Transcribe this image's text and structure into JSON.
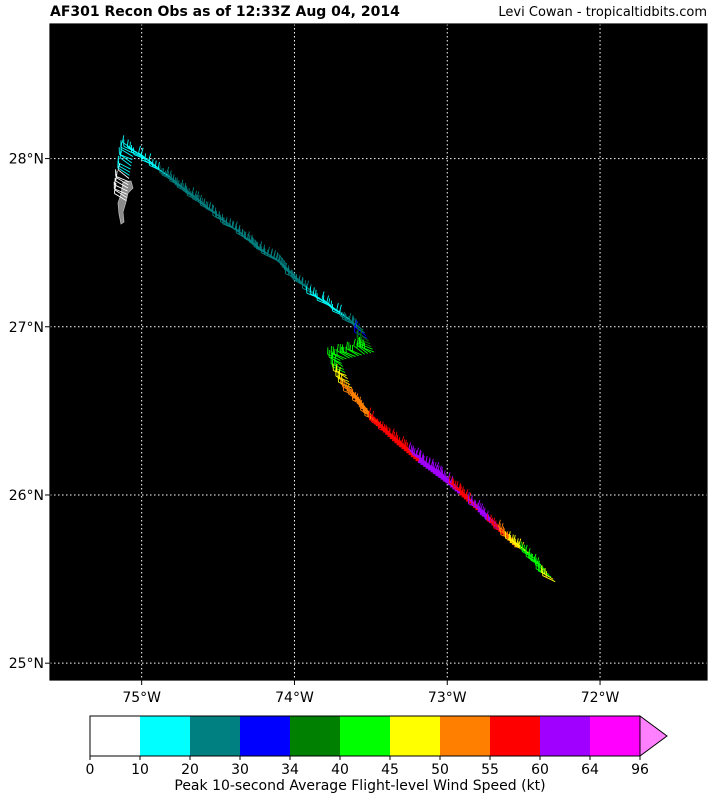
{
  "header": {
    "title": "AF301 Recon Obs as of 12:33Z Aug 04, 2014",
    "credit": "Levi Cowan - tropicaltidbits.com"
  },
  "map": {
    "lon_range": [
      -75.6,
      -71.3
    ],
    "lat_range": [
      24.9,
      28.8
    ],
    "lon_ticks": [
      {
        "value": -75,
        "label": "75°W"
      },
      {
        "value": -74,
        "label": "74°W"
      },
      {
        "value": -73,
        "label": "73°W"
      },
      {
        "value": -72,
        "label": "72°W"
      }
    ],
    "lat_ticks": [
      {
        "value": 28,
        "label": "28°N"
      },
      {
        "value": 27,
        "label": "27°N"
      },
      {
        "value": 26,
        "label": "26°N"
      },
      {
        "value": 25,
        "label": "25°N"
      }
    ],
    "background": "#000000",
    "grid": "dotted white",
    "land_color": "#8a8a8a",
    "flight_track": [
      {
        "lon": -75.1,
        "lat": 27.75,
        "wind": 8
      },
      {
        "lon": -75.08,
        "lat": 27.9,
        "wind": 10
      },
      {
        "lon": -75.05,
        "lat": 28.05,
        "wind": 15
      },
      {
        "lon": -74.8,
        "lat": 27.88,
        "wind": 20
      },
      {
        "lon": -74.55,
        "lat": 27.7,
        "wind": 22
      },
      {
        "lon": -74.3,
        "lat": 27.52,
        "wind": 23
      },
      {
        "lon": -74.05,
        "lat": 27.35,
        "wind": 22
      },
      {
        "lon": -73.85,
        "lat": 27.18,
        "wind": 20
      },
      {
        "lon": -73.65,
        "lat": 27.05,
        "wind": 18
      },
      {
        "lon": -73.55,
        "lat": 26.98,
        "wind": 28
      },
      {
        "lon": -73.48,
        "lat": 26.85,
        "wind": 42
      },
      {
        "lon": -73.7,
        "lat": 26.8,
        "wind": 41
      },
      {
        "lon": -73.62,
        "lat": 26.62,
        "wind": 50
      },
      {
        "lon": -73.5,
        "lat": 26.48,
        "wind": 54
      },
      {
        "lon": -73.35,
        "lat": 26.35,
        "wind": 57
      },
      {
        "lon": -73.18,
        "lat": 26.22,
        "wind": 60
      },
      {
        "lon": -73.0,
        "lat": 26.1,
        "wind": 62
      },
      {
        "lon": -72.85,
        "lat": 25.98,
        "wind": 58
      },
      {
        "lon": -72.7,
        "lat": 25.85,
        "wind": 63
      },
      {
        "lon": -72.55,
        "lat": 25.72,
        "wind": 50
      },
      {
        "lon": -72.4,
        "lat": 25.6,
        "wind": 42
      },
      {
        "lon": -72.28,
        "lat": 25.47,
        "wind": 46
      }
    ]
  },
  "colorbar": {
    "bounds": [
      0,
      10,
      20,
      30,
      34,
      40,
      45,
      50,
      55,
      60,
      64,
      96
    ],
    "colors": [
      "#ffffff",
      "#00ffff",
      "#008080",
      "#0000ff",
      "#008000",
      "#00ff00",
      "#ffff00",
      "#ff8000",
      "#ff0000",
      "#a000ff",
      "#ff00ff"
    ],
    "extend_color": "#ff80ff",
    "label": "Peak 10-second Average Flight-level Wind Speed (kt)"
  }
}
